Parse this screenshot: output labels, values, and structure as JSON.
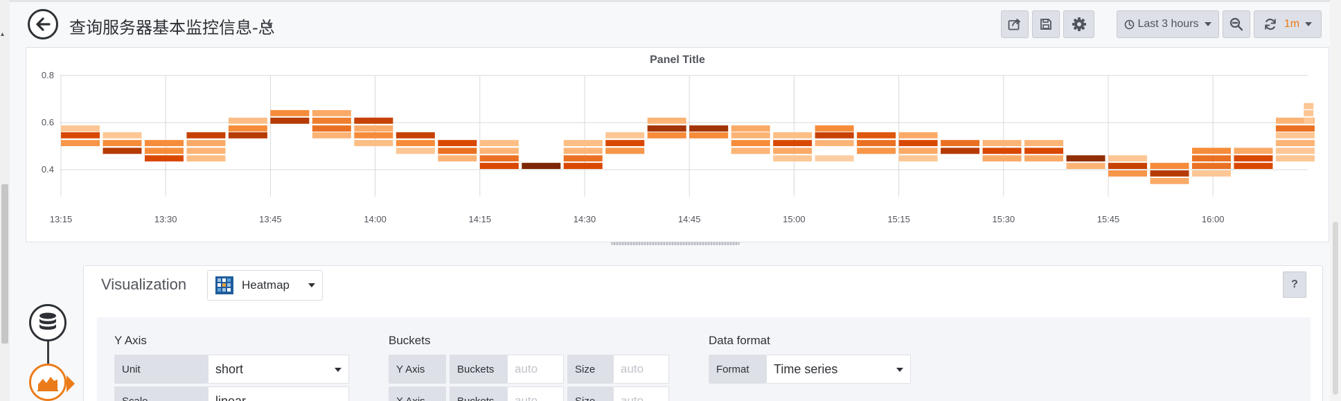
{
  "dashboard": {
    "title": "查询服务器基本监控信息-总"
  },
  "toolbar": {
    "time_range_label": "Last 3 hours",
    "refresh_interval": "1m"
  },
  "panel": {
    "title": "Panel Title"
  },
  "chart_data": {
    "type": "heatmap",
    "title": "Panel Title",
    "x_ticks": [
      "13:15",
      "13:30",
      "13:45",
      "14:00",
      "14:15",
      "14:30",
      "14:45",
      "15:00",
      "15:15",
      "15:30",
      "15:45",
      "16:00"
    ],
    "y_ticks": [
      0.4,
      0.6,
      0.8
    ],
    "ylim": [
      0.3,
      0.8
    ],
    "bucket_size": 0.032,
    "color_scheme": "oranges",
    "grid": true,
    "columns": [
      {
        "time": "13:15",
        "cells": [
          [
            0.575,
            0.2
          ],
          [
            0.546,
            0.75
          ],
          [
            0.513,
            0.45
          ]
        ]
      },
      {
        "time": "13:21",
        "cells": [
          [
            0.546,
            0.2
          ],
          [
            0.513,
            0.5
          ],
          [
            0.48,
            0.85
          ]
        ]
      },
      {
        "time": "13:27",
        "cells": [
          [
            0.513,
            0.5
          ],
          [
            0.48,
            0.5
          ],
          [
            0.448,
            0.75
          ]
        ]
      },
      {
        "time": "13:33",
        "cells": [
          [
            0.546,
            0.8
          ],
          [
            0.513,
            0.35
          ],
          [
            0.48,
            0.3
          ],
          [
            0.448,
            0.25
          ]
        ]
      },
      {
        "time": "13:39",
        "cells": [
          [
            0.608,
            0.25
          ],
          [
            0.575,
            0.5
          ],
          [
            0.546,
            0.85
          ]
        ]
      },
      {
        "time": "13:45",
        "cells": [
          [
            0.64,
            0.5
          ],
          [
            0.608,
            0.85
          ]
        ]
      },
      {
        "time": "13:51",
        "cells": [
          [
            0.64,
            0.35
          ],
          [
            0.608,
            0.55
          ],
          [
            0.575,
            0.6
          ],
          [
            0.546,
            0.3
          ]
        ]
      },
      {
        "time": "13:57",
        "cells": [
          [
            0.608,
            0.8
          ],
          [
            0.575,
            0.35
          ],
          [
            0.546,
            0.5
          ],
          [
            0.513,
            0.25
          ]
        ]
      },
      {
        "time": "14:03",
        "cells": [
          [
            0.546,
            0.8
          ],
          [
            0.513,
            0.5
          ],
          [
            0.48,
            0.2
          ]
        ]
      },
      {
        "time": "14:09",
        "cells": [
          [
            0.513,
            0.75
          ],
          [
            0.48,
            0.6
          ],
          [
            0.448,
            0.3
          ]
        ]
      },
      {
        "time": "14:15",
        "cells": [
          [
            0.513,
            0.25
          ],
          [
            0.48,
            0.3
          ],
          [
            0.448,
            0.6
          ],
          [
            0.416,
            0.75
          ]
        ]
      },
      {
        "time": "14:21",
        "cells": [
          [
            0.416,
            1.0
          ]
        ]
      },
      {
        "time": "14:27",
        "cells": [
          [
            0.513,
            0.25
          ],
          [
            0.48,
            0.3
          ],
          [
            0.448,
            0.6
          ],
          [
            0.416,
            0.75
          ]
        ]
      },
      {
        "time": "14:33",
        "cells": [
          [
            0.546,
            0.2
          ],
          [
            0.513,
            0.75
          ],
          [
            0.48,
            0.45
          ]
        ]
      },
      {
        "time": "14:39",
        "cells": [
          [
            0.608,
            0.3
          ],
          [
            0.575,
            0.9
          ],
          [
            0.546,
            0.5
          ]
        ]
      },
      {
        "time": "14:45",
        "cells": [
          [
            0.575,
            0.9
          ],
          [
            0.546,
            0.5
          ]
        ]
      },
      {
        "time": "14:51",
        "cells": [
          [
            0.575,
            0.35
          ],
          [
            0.546,
            0.3
          ],
          [
            0.513,
            0.5
          ],
          [
            0.48,
            0.3
          ]
        ]
      },
      {
        "time": "14:57",
        "cells": [
          [
            0.546,
            0.25
          ],
          [
            0.513,
            0.75
          ],
          [
            0.48,
            0.35
          ],
          [
            0.448,
            0.2
          ]
        ]
      },
      {
        "time": "15:03",
        "cells": [
          [
            0.575,
            0.5
          ],
          [
            0.546,
            0.8
          ],
          [
            0.513,
            0.3
          ],
          [
            0.448,
            0.15
          ]
        ]
      },
      {
        "time": "15:09",
        "cells": [
          [
            0.546,
            0.7
          ],
          [
            0.513,
            0.6
          ],
          [
            0.48,
            0.45
          ]
        ]
      },
      {
        "time": "15:15",
        "cells": [
          [
            0.546,
            0.35
          ],
          [
            0.513,
            0.75
          ],
          [
            0.48,
            0.35
          ],
          [
            0.448,
            0.2
          ]
        ]
      },
      {
        "time": "15:21",
        "cells": [
          [
            0.513,
            0.6
          ],
          [
            0.48,
            0.85
          ]
        ]
      },
      {
        "time": "15:27",
        "cells": [
          [
            0.513,
            0.3
          ],
          [
            0.48,
            0.75
          ],
          [
            0.448,
            0.35
          ]
        ]
      },
      {
        "time": "15:33",
        "cells": [
          [
            0.513,
            0.3
          ],
          [
            0.48,
            0.75
          ],
          [
            0.448,
            0.35
          ]
        ]
      },
      {
        "time": "15:39",
        "cells": [
          [
            0.448,
            0.95
          ],
          [
            0.416,
            0.3
          ]
        ]
      },
      {
        "time": "15:45",
        "cells": [
          [
            0.448,
            0.2
          ],
          [
            0.416,
            0.8
          ],
          [
            0.384,
            0.45
          ]
        ]
      },
      {
        "time": "15:51",
        "cells": [
          [
            0.416,
            0.5
          ],
          [
            0.384,
            0.85
          ],
          [
            0.352,
            0.35
          ]
        ]
      },
      {
        "time": "15:57",
        "cells": [
          [
            0.48,
            0.5
          ],
          [
            0.448,
            0.6
          ],
          [
            0.416,
            0.6
          ],
          [
            0.384,
            0.2
          ]
        ]
      },
      {
        "time": "16:03",
        "cells": [
          [
            0.48,
            0.35
          ],
          [
            0.448,
            0.75
          ],
          [
            0.416,
            0.75
          ]
        ]
      },
      {
        "time": "16:09",
        "cells": [
          [
            0.608,
            0.3
          ],
          [
            0.575,
            0.6
          ],
          [
            0.546,
            0.2
          ],
          [
            0.513,
            0.3
          ],
          [
            0.48,
            0.2
          ],
          [
            0.448,
            0.2
          ]
        ]
      },
      {
        "time": "16:13",
        "cells": [
          [
            0.67,
            0.2
          ],
          [
            0.64,
            0.2
          ],
          [
            0.608,
            0.2
          ]
        ]
      }
    ]
  },
  "editor": {
    "section_label": "Visualization",
    "visualization_name": "Heatmap",
    "help_label": "?",
    "y_axis": {
      "title": "Y Axis",
      "unit_label": "Unit",
      "unit_value": "short",
      "scale_label": "Scale",
      "scale_value": "linear"
    },
    "buckets": {
      "title": "Buckets",
      "row_label": "Y Axis",
      "buckets_label": "Buckets",
      "buckets_placeholder": "auto",
      "size_label": "Size",
      "size_placeholder": "auto",
      "row2_label": "X Axis",
      "buckets2_label": "Buckets",
      "buckets2_placeholder": "auto",
      "size2_label": "Size",
      "size2_placeholder": "auto"
    },
    "data_format": {
      "title": "Data format",
      "format_label": "Format",
      "format_value": "Time series"
    }
  },
  "colors": {
    "accent": "#eb7b18",
    "heatmap_low": "#fde7cf",
    "heatmap_high": "#7f2704"
  }
}
